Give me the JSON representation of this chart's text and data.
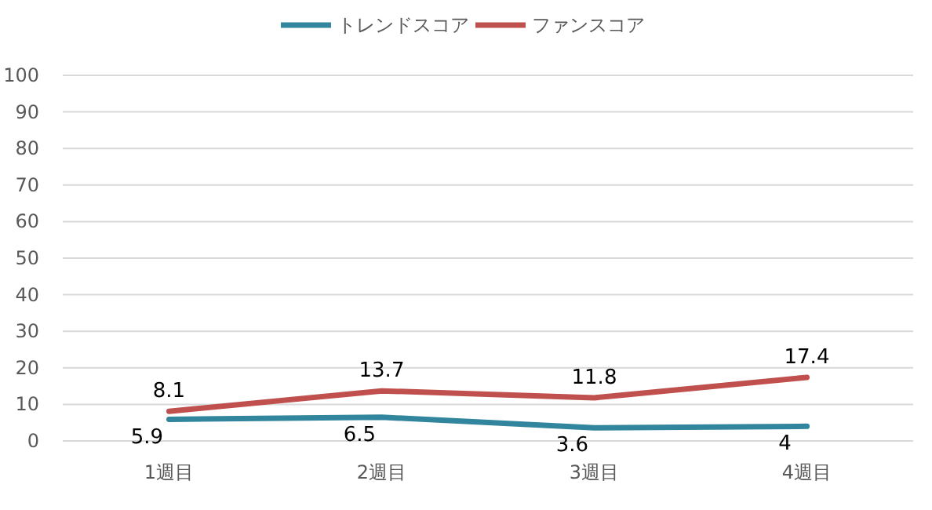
{
  "chart_data": {
    "type": "line",
    "categories": [
      "1週目",
      "2週目",
      "3週目",
      "4週目"
    ],
    "series": [
      {
        "name": "トレンドスコア",
        "color": "#31859c",
        "values": [
          5.9,
          6.5,
          3.6,
          4
        ]
      },
      {
        "name": "ファンスコア",
        "color": "#c0504d",
        "values": [
          8.1,
          13.7,
          11.8,
          17.4
        ]
      }
    ],
    "ylim": [
      0,
      100
    ],
    "yticks": [
      0,
      10,
      20,
      30,
      40,
      50,
      60,
      70,
      80,
      90,
      100
    ],
    "grid": "y",
    "legend": "top",
    "data_labels": true,
    "marker": "none",
    "line_style": "solid"
  }
}
